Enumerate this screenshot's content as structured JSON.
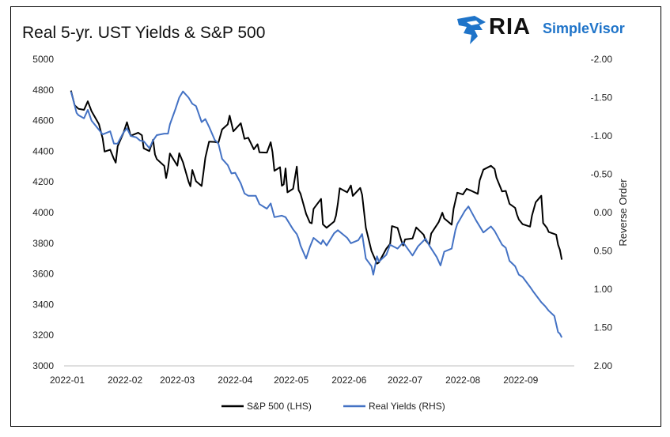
{
  "title": "Real 5-yr. UST Yields & S&P 500",
  "logo": {
    "ria": "RIA",
    "simplevisor": "SimpleVisor",
    "bird_color": "#1f74c9"
  },
  "chart_data": {
    "type": "line",
    "title": "Real 5-yr. UST Yields & S&P 500",
    "x_ticks": [
      "2022-01",
      "2022-02",
      "2022-03",
      "2022-04",
      "2022-05",
      "2022-06",
      "2022-07",
      "2022-08",
      "2022-09"
    ],
    "y_left": {
      "min": 3000,
      "max": 5000,
      "ticks": [
        "5000",
        "4800",
        "4600",
        "4400",
        "4200",
        "4000",
        "3800",
        "3600",
        "3400",
        "3200",
        "3000"
      ]
    },
    "y_right": {
      "min": -2.0,
      "max": 2.0,
      "reversed": true,
      "label": "Reverse Order",
      "ticks": [
        "-2.00",
        "-1.50",
        "-1.00",
        "-0.50",
        "0.00",
        "0.50",
        "1.00",
        "1.50",
        "2.00"
      ]
    },
    "grid": false,
    "legend_position": "bottom",
    "series": [
      {
        "name": "S&P 500 (LHS)",
        "axis": "left",
        "color": "#000000",
        "points": [
          [
            "2022-01-03",
            4796
          ],
          [
            "2022-01-05",
            4700
          ],
          [
            "2022-01-07",
            4677
          ],
          [
            "2022-01-10",
            4670
          ],
          [
            "2022-01-12",
            4726
          ],
          [
            "2022-01-14",
            4662
          ],
          [
            "2022-01-18",
            4577
          ],
          [
            "2022-01-20",
            4483
          ],
          [
            "2022-01-21",
            4398
          ],
          [
            "2022-01-24",
            4410
          ],
          [
            "2022-01-26",
            4350
          ],
          [
            "2022-01-27",
            4326
          ],
          [
            "2022-01-28",
            4432
          ],
          [
            "2022-01-31",
            4516
          ],
          [
            "2022-02-02",
            4589
          ],
          [
            "2022-02-04",
            4501
          ],
          [
            "2022-02-08",
            4521
          ],
          [
            "2022-02-10",
            4504
          ],
          [
            "2022-02-11",
            4419
          ],
          [
            "2022-02-14",
            4401
          ],
          [
            "2022-02-16",
            4475
          ],
          [
            "2022-02-17",
            4380
          ],
          [
            "2022-02-18",
            4349
          ],
          [
            "2022-02-22",
            4304
          ],
          [
            "2022-02-23",
            4225
          ],
          [
            "2022-02-24",
            4288
          ],
          [
            "2022-02-25",
            4385
          ],
          [
            "2022-03-01",
            4306
          ],
          [
            "2022-03-02",
            4387
          ],
          [
            "2022-03-04",
            4329
          ],
          [
            "2022-03-07",
            4201
          ],
          [
            "2022-03-08",
            4171
          ],
          [
            "2022-03-09",
            4278
          ],
          [
            "2022-03-11",
            4204
          ],
          [
            "2022-03-14",
            4173
          ],
          [
            "2022-03-15",
            4262
          ],
          [
            "2022-03-16",
            4358
          ],
          [
            "2022-03-18",
            4463
          ],
          [
            "2022-03-21",
            4461
          ],
          [
            "2022-03-23",
            4456
          ],
          [
            "2022-03-25",
            4543
          ],
          [
            "2022-03-28",
            4575
          ],
          [
            "2022-03-29",
            4632
          ],
          [
            "2022-03-31",
            4530
          ],
          [
            "2022-04-04",
            4583
          ],
          [
            "2022-04-06",
            4481
          ],
          [
            "2022-04-08",
            4488
          ],
          [
            "2022-04-11",
            4413
          ],
          [
            "2022-04-13",
            4446
          ],
          [
            "2022-04-14",
            4393
          ],
          [
            "2022-04-18",
            4391
          ],
          [
            "2022-04-20",
            4459
          ],
          [
            "2022-04-21",
            4394
          ],
          [
            "2022-04-22",
            4272
          ],
          [
            "2022-04-25",
            4296
          ],
          [
            "2022-04-26",
            4175
          ],
          [
            "2022-04-27",
            4184
          ],
          [
            "2022-04-28",
            4288
          ],
          [
            "2022-04-29",
            4132
          ],
          [
            "2022-05-02",
            4155
          ],
          [
            "2022-05-04",
            4300
          ],
          [
            "2022-05-05",
            4147
          ],
          [
            "2022-05-06",
            4123
          ],
          [
            "2022-05-09",
            3991
          ],
          [
            "2022-05-11",
            3935
          ],
          [
            "2022-05-12",
            3930
          ],
          [
            "2022-05-13",
            4024
          ],
          [
            "2022-05-17",
            4089
          ],
          [
            "2022-05-18",
            3923
          ],
          [
            "2022-05-20",
            3901
          ],
          [
            "2022-05-24",
            3941
          ],
          [
            "2022-05-25",
            3979
          ],
          [
            "2022-05-26",
            4058
          ],
          [
            "2022-05-27",
            4158
          ],
          [
            "2022-05-31",
            4132
          ],
          [
            "2022-06-02",
            4177
          ],
          [
            "2022-06-03",
            4109
          ],
          [
            "2022-06-07",
            4161
          ],
          [
            "2022-06-08",
            4116
          ],
          [
            "2022-06-10",
            3901
          ],
          [
            "2022-06-13",
            3750
          ],
          [
            "2022-06-16",
            3667
          ],
          [
            "2022-06-17",
            3675
          ],
          [
            "2022-06-21",
            3765
          ],
          [
            "2022-06-23",
            3796
          ],
          [
            "2022-06-24",
            3912
          ],
          [
            "2022-06-27",
            3900
          ],
          [
            "2022-06-29",
            3818
          ],
          [
            "2022-06-30",
            3785
          ],
          [
            "2022-07-01",
            3825
          ],
          [
            "2022-07-05",
            3831
          ],
          [
            "2022-07-07",
            3903
          ],
          [
            "2022-07-11",
            3855
          ],
          [
            "2022-07-12",
            3819
          ],
          [
            "2022-07-14",
            3790
          ],
          [
            "2022-07-15",
            3863
          ],
          [
            "2022-07-19",
            3937
          ],
          [
            "2022-07-21",
            3999
          ],
          [
            "2022-07-22",
            3962
          ],
          [
            "2022-07-26",
            3921
          ],
          [
            "2022-07-27",
            4024
          ],
          [
            "2022-07-29",
            4130
          ],
          [
            "2022-08-01",
            4118
          ],
          [
            "2022-08-03",
            4155
          ],
          [
            "2022-08-05",
            4145
          ],
          [
            "2022-08-09",
            4122
          ],
          [
            "2022-08-10",
            4210
          ],
          [
            "2022-08-12",
            4280
          ],
          [
            "2022-08-16",
            4305
          ],
          [
            "2022-08-18",
            4284
          ],
          [
            "2022-08-19",
            4228
          ],
          [
            "2022-08-22",
            4138
          ],
          [
            "2022-08-24",
            4141
          ],
          [
            "2022-08-26",
            4057
          ],
          [
            "2022-08-29",
            4031
          ],
          [
            "2022-08-30",
            3986
          ],
          [
            "2022-08-31",
            3955
          ],
          [
            "2022-09-02",
            3924
          ],
          [
            "2022-09-06",
            3908
          ],
          [
            "2022-09-07",
            3980
          ],
          [
            "2022-09-09",
            4067
          ],
          [
            "2022-09-12",
            4110
          ],
          [
            "2022-09-13",
            3932
          ],
          [
            "2022-09-15",
            3901
          ],
          [
            "2022-09-16",
            3873
          ],
          [
            "2022-09-20",
            3856
          ],
          [
            "2022-09-21",
            3790
          ],
          [
            "2022-09-22",
            3757
          ],
          [
            "2022-09-23",
            3693
          ]
        ]
      },
      {
        "name": "Real Yields (RHS)",
        "axis": "right",
        "color": "#4472c4",
        "points": [
          [
            "2022-01-03",
            -1.58
          ],
          [
            "2022-01-05",
            -1.4
          ],
          [
            "2022-01-06",
            -1.3
          ],
          [
            "2022-01-07",
            -1.27
          ],
          [
            "2022-01-10",
            -1.23
          ],
          [
            "2022-01-12",
            -1.34
          ],
          [
            "2022-01-14",
            -1.2
          ],
          [
            "2022-01-18",
            -1.08
          ],
          [
            "2022-01-20",
            -1.02
          ],
          [
            "2022-01-24",
            -1.06
          ],
          [
            "2022-01-26",
            -0.9
          ],
          [
            "2022-01-28",
            -0.9
          ],
          [
            "2022-01-31",
            -1.04
          ],
          [
            "2022-02-02",
            -1.1
          ],
          [
            "2022-02-04",
            -1.0
          ],
          [
            "2022-02-07",
            -0.98
          ],
          [
            "2022-02-09",
            -0.94
          ],
          [
            "2022-02-11",
            -0.93
          ],
          [
            "2022-02-14",
            -0.84
          ],
          [
            "2022-02-16",
            -0.94
          ],
          [
            "2022-02-18",
            -1.01
          ],
          [
            "2022-02-22",
            -1.03
          ],
          [
            "2022-02-24",
            -1.03
          ],
          [
            "2022-02-25",
            -1.15
          ],
          [
            "2022-02-28",
            -1.35
          ],
          [
            "2022-03-02",
            -1.5
          ],
          [
            "2022-03-04",
            -1.58
          ],
          [
            "2022-03-07",
            -1.5
          ],
          [
            "2022-03-09",
            -1.42
          ],
          [
            "2022-03-11",
            -1.39
          ],
          [
            "2022-03-14",
            -1.18
          ],
          [
            "2022-03-16",
            -1.22
          ],
          [
            "2022-03-18",
            -1.12
          ],
          [
            "2022-03-21",
            -0.95
          ],
          [
            "2022-03-23",
            -0.9
          ],
          [
            "2022-03-25",
            -0.7
          ],
          [
            "2022-03-28",
            -0.62
          ],
          [
            "2022-03-30",
            -0.51
          ],
          [
            "2022-04-01",
            -0.52
          ],
          [
            "2022-04-04",
            -0.38
          ],
          [
            "2022-04-06",
            -0.25
          ],
          [
            "2022-04-08",
            -0.22
          ],
          [
            "2022-04-12",
            -0.22
          ],
          [
            "2022-04-14",
            -0.11
          ],
          [
            "2022-04-18",
            -0.05
          ],
          [
            "2022-04-20",
            -0.12
          ],
          [
            "2022-04-22",
            0.06
          ],
          [
            "2022-04-26",
            0.04
          ],
          [
            "2022-04-28",
            0.06
          ],
          [
            "2022-05-02",
            0.22
          ],
          [
            "2022-05-04",
            0.28
          ],
          [
            "2022-05-05",
            0.34
          ],
          [
            "2022-05-06",
            0.43
          ],
          [
            "2022-05-09",
            0.6
          ],
          [
            "2022-05-11",
            0.45
          ],
          [
            "2022-05-13",
            0.33
          ],
          [
            "2022-05-17",
            0.41
          ],
          [
            "2022-05-18",
            0.36
          ],
          [
            "2022-05-20",
            0.43
          ],
          [
            "2022-05-24",
            0.27
          ],
          [
            "2022-05-26",
            0.23
          ],
          [
            "2022-05-31",
            0.33
          ],
          [
            "2022-06-02",
            0.4
          ],
          [
            "2022-06-06",
            0.36
          ],
          [
            "2022-06-08",
            0.28
          ],
          [
            "2022-06-10",
            0.6
          ],
          [
            "2022-06-13",
            0.7
          ],
          [
            "2022-06-14",
            0.81
          ],
          [
            "2022-06-16",
            0.57
          ],
          [
            "2022-06-17",
            0.64
          ],
          [
            "2022-06-21",
            0.55
          ],
          [
            "2022-06-23",
            0.42
          ],
          [
            "2022-06-27",
            0.47
          ],
          [
            "2022-06-30",
            0.39
          ],
          [
            "2022-07-05",
            0.56
          ],
          [
            "2022-07-08",
            0.44
          ],
          [
            "2022-07-12",
            0.34
          ],
          [
            "2022-07-14",
            0.43
          ],
          [
            "2022-07-18",
            0.58
          ],
          [
            "2022-07-20",
            0.69
          ],
          [
            "2022-07-22",
            0.51
          ],
          [
            "2022-07-26",
            0.47
          ],
          [
            "2022-07-28",
            0.23
          ],
          [
            "2022-07-29",
            0.15
          ],
          [
            "2022-08-02",
            -0.02
          ],
          [
            "2022-08-04",
            -0.08
          ],
          [
            "2022-08-08",
            0.1
          ],
          [
            "2022-08-12",
            0.26
          ],
          [
            "2022-08-16",
            0.18
          ],
          [
            "2022-08-18",
            0.24
          ],
          [
            "2022-08-22",
            0.42
          ],
          [
            "2022-08-24",
            0.46
          ],
          [
            "2022-08-26",
            0.63
          ],
          [
            "2022-08-29",
            0.7
          ],
          [
            "2022-08-31",
            0.81
          ],
          [
            "2022-09-02",
            0.84
          ],
          [
            "2022-09-06",
            0.97
          ],
          [
            "2022-09-08",
            1.04
          ],
          [
            "2022-09-12",
            1.17
          ],
          [
            "2022-09-14",
            1.22
          ],
          [
            "2022-09-16",
            1.28
          ],
          [
            "2022-09-19",
            1.35
          ],
          [
            "2022-09-21",
            1.56
          ],
          [
            "2022-09-22",
            1.58
          ],
          [
            "2022-09-23",
            1.63
          ]
        ]
      }
    ]
  }
}
